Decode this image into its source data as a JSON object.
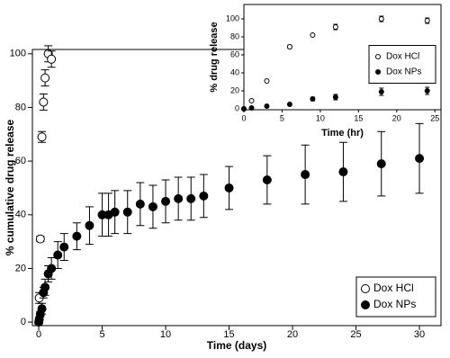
{
  "chart_data": [
    {
      "type": "scatter",
      "xlabel": "Time (days)",
      "ylabel": "% cumulative drug release",
      "xlim": [
        -0.5,
        31.7
      ],
      "ylim": [
        -1.3,
        101.6
      ],
      "xticks": [
        0,
        5,
        10,
        15,
        20,
        25,
        30
      ],
      "yticks": [
        0,
        20,
        40,
        60,
        80,
        100
      ],
      "legend": "lower right",
      "series": [
        {
          "name": "Dox HCl",
          "color": "#000000",
          "fill": "#ffffff",
          "x": [
            0,
            0.04,
            0.125,
            0.25,
            0.375,
            0.5,
            0.75,
            1
          ],
          "values": [
            0,
            9,
            31,
            69,
            82,
            91,
            100,
            98
          ],
          "errors": [
            0,
            2,
            1,
            2,
            3,
            3,
            3,
            3
          ]
        },
        {
          "name": "Dox NPs",
          "color": "#000000",
          "fill": "#000000",
          "x": [
            0,
            0.04,
            0.125,
            0.25,
            0.375,
            0.5,
            0.75,
            1,
            1.5,
            2,
            3,
            4,
            5,
            5.5,
            6,
            7,
            8,
            9,
            10,
            11,
            12,
            13,
            15,
            18,
            21,
            24,
            27,
            30
          ],
          "values": [
            0,
            1,
            3,
            5,
            11,
            13,
            18,
            20,
            25,
            28,
            32,
            36,
            40,
            40,
            41,
            41,
            44,
            43,
            45,
            46,
            46,
            47,
            50,
            53,
            55,
            56,
            59,
            61
          ],
          "errors": [
            0,
            1,
            1,
            2,
            2,
            3,
            3,
            4,
            5,
            5,
            5,
            7,
            8,
            8,
            8,
            8,
            8,
            8,
            8,
            8,
            8,
            8,
            8,
            9,
            11,
            11,
            12,
            13
          ]
        }
      ]
    },
    {
      "type": "scatter",
      "xlabel": "Time (hr)",
      "ylabel": "% drug release",
      "xlim": [
        0,
        25.8
      ],
      "ylim": [
        -1,
        116
      ],
      "xticks": [
        0,
        5,
        10,
        15,
        20,
        25
      ],
      "yticks": [
        0,
        20,
        40,
        60,
        80,
        100
      ],
      "legend": "center right",
      "series": [
        {
          "name": "Dox HCl",
          "color": "#000000",
          "fill": "#ffffff",
          "x": [
            0,
            1,
            3,
            6,
            9,
            12,
            18,
            24
          ],
          "values": [
            0,
            9,
            31,
            69,
            82,
            91,
            100,
            98
          ],
          "errors": [
            0,
            1,
            1,
            2,
            1,
            3,
            3,
            3
          ]
        },
        {
          "name": "Dox NPs",
          "color": "#000000",
          "fill": "#000000",
          "x": [
            0,
            1,
            3,
            6,
            9,
            12,
            18,
            24
          ],
          "values": [
            0,
            1,
            3,
            5,
            11,
            13,
            19,
            20
          ],
          "errors": [
            0,
            1,
            1,
            1,
            2,
            3,
            4,
            4
          ]
        }
      ]
    }
  ]
}
